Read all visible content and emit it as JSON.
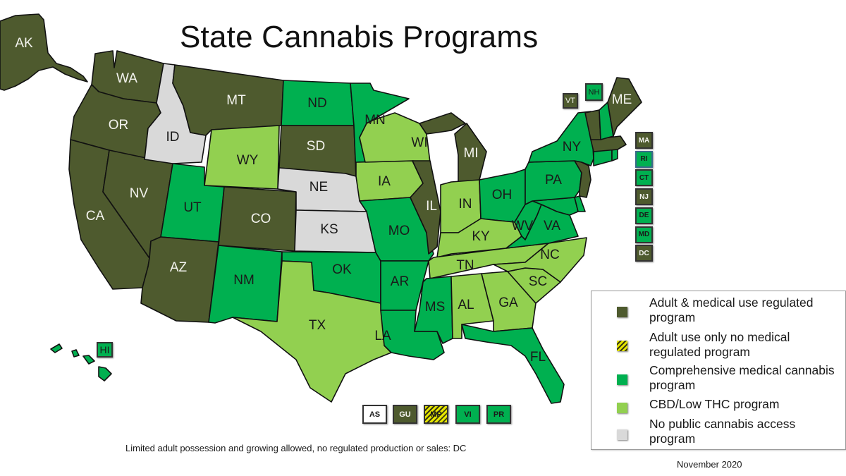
{
  "title": "State Cannabis Programs",
  "colors": {
    "adult_medical": "#4e5a2e",
    "adult_only": "#e6e600",
    "comprehensive_medical": "#00b050",
    "cbd_low_thc": "#92d050",
    "no_access": "#d9d9d9"
  },
  "legend": {
    "items": [
      {
        "key": "adult_medical",
        "label": "Adult & medical use regulated program"
      },
      {
        "key": "adult_only",
        "label": "Adult use only no medical regulated program"
      },
      {
        "key": "comprehensive_medical",
        "label": "Comprehensive medical cannabis program"
      },
      {
        "key": "cbd_low_thc",
        "label": "CBD/Low THC program"
      },
      {
        "key": "no_access",
        "label": "No public cannabis access program"
      }
    ]
  },
  "states": {
    "AK": "adult_medical",
    "WA": "adult_medical",
    "OR": "adult_medical",
    "CA": "adult_medical",
    "NV": "adult_medical",
    "AZ": "adult_medical",
    "MT": "adult_medical",
    "CO": "adult_medical",
    "SD": "adult_medical",
    "IL": "adult_medical",
    "MI": "adult_medical",
    "ME": "adult_medical",
    "VT": "adult_medical",
    "MA": "adult_medical",
    "NJ": "adult_medical",
    "DC": "adult_medical",
    "ID": "no_access",
    "NE": "no_access",
    "KS": "no_access",
    "WY": "cbd_low_thc",
    "TX": "cbd_low_thc",
    "IA": "cbd_low_thc",
    "WI": "cbd_low_thc",
    "IN": "cbd_low_thc",
    "KY": "cbd_low_thc",
    "TN": "cbd_low_thc",
    "NC": "cbd_low_thc",
    "SC": "cbd_low_thc",
    "GA": "cbd_low_thc",
    "AL": "cbd_low_thc",
    "UT": "comprehensive_medical",
    "NM": "comprehensive_medical",
    "ND": "comprehensive_medical",
    "MN": "comprehensive_medical",
    "OK": "comprehensive_medical",
    "MO": "comprehensive_medical",
    "AR": "comprehensive_medical",
    "LA": "comprehensive_medical",
    "MS": "comprehensive_medical",
    "FL": "comprehensive_medical",
    "OH": "comprehensive_medical",
    "PA": "comprehensive_medical",
    "NY": "comprehensive_medical",
    "WV": "comprehensive_medical",
    "VA": "comprehensive_medical",
    "NH": "comprehensive_medical",
    "RI": "comprehensive_medical",
    "CT": "comprehensive_medical",
    "DE": "comprehensive_medical",
    "MD": "comprehensive_medical",
    "HI": "comprehensive_medical"
  },
  "map_labels": [
    "AK",
    "WA",
    "OR",
    "CA",
    "NV",
    "ID",
    "MT",
    "WY",
    "UT",
    "AZ",
    "CO",
    "NM",
    "ND",
    "SD",
    "NE",
    "KS",
    "OK",
    "TX",
    "MN",
    "IA",
    "MO",
    "AR",
    "LA",
    "WI",
    "IL",
    "MI",
    "IN",
    "KY",
    "TN",
    "MS",
    "AL",
    "GA",
    "FL",
    "SC",
    "NC",
    "OH",
    "WV",
    "VA",
    "PA",
    "NY",
    "ME",
    "HI"
  ],
  "northeast_callouts": [
    {
      "code": "VT",
      "category": "adult_medical"
    },
    {
      "code": "NH",
      "category": "comprehensive_medical"
    }
  ],
  "side_boxes": [
    {
      "code": "MA",
      "category": "adult_medical"
    },
    {
      "code": "RI",
      "category": "comprehensive_medical"
    },
    {
      "code": "CT",
      "category": "comprehensive_medical"
    },
    {
      "code": "NJ",
      "category": "adult_medical"
    },
    {
      "code": "DE",
      "category": "comprehensive_medical"
    },
    {
      "code": "MD",
      "category": "comprehensive_medical"
    },
    {
      "code": "DC",
      "category": "adult_medical"
    }
  ],
  "territories": [
    {
      "code": "AS",
      "category": "none"
    },
    {
      "code": "GU",
      "category": "adult_medical"
    },
    {
      "code": "MP",
      "category": "adult_only"
    },
    {
      "code": "VI",
      "category": "comprehensive_medical"
    },
    {
      "code": "PR",
      "category": "comprehensive_medical"
    }
  ],
  "footnote": "Limited adult possession and growing allowed, no regulated production or sales: DC",
  "date": "November 2020"
}
